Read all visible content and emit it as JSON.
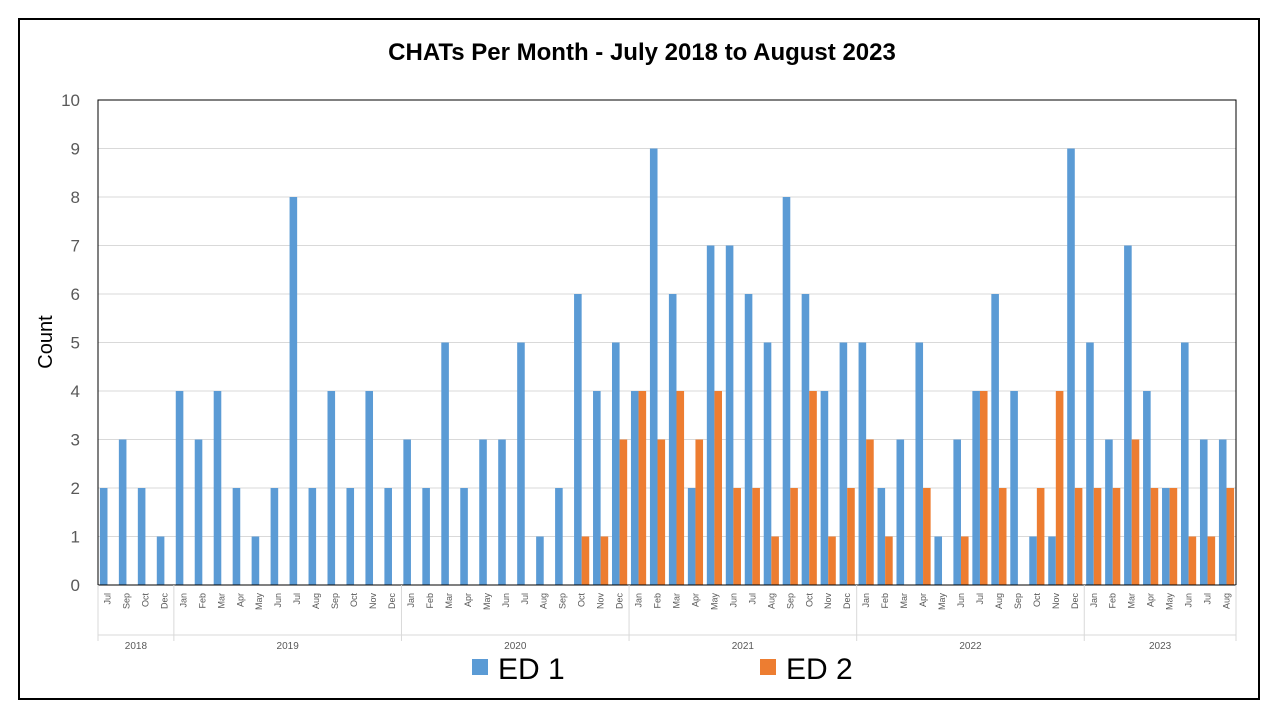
{
  "chart_data": {
    "type": "bar",
    "title": "CHATs Per Month - July 2018 to August 2023",
    "xlabel": "",
    "ylabel": "Count",
    "ylim": [
      0,
      10
    ],
    "yticks": [
      0,
      1,
      2,
      3,
      4,
      5,
      6,
      7,
      8,
      9,
      10
    ],
    "grid": true,
    "legend_position": "bottom",
    "categories": [
      "Jul",
      "Sep",
      "Oct",
      "Dec",
      "Jan",
      "Feb",
      "Mar",
      "Apr",
      "May",
      "Jun",
      "Jul",
      "Aug",
      "Sep",
      "Oct",
      "Nov",
      "Dec",
      "Jan",
      "Feb",
      "Mar",
      "Apr",
      "May",
      "Jun",
      "Jul",
      "Aug",
      "Sep",
      "Oct",
      "Nov",
      "Dec",
      "Jan",
      "Feb",
      "Mar",
      "Apr",
      "May",
      "Jun",
      "Jul",
      "Aug",
      "Sep",
      "Oct",
      "Nov",
      "Dec",
      "Jan",
      "Feb",
      "Mar",
      "Apr",
      "May",
      "Jun",
      "Jul",
      "Aug",
      "Sep",
      "Oct",
      "Nov",
      "Dec",
      "Jan",
      "Feb",
      "Mar",
      "Apr",
      "May",
      "Jun",
      "Jul",
      "Aug"
    ],
    "year_groups": [
      {
        "label": "2018",
        "count": 4
      },
      {
        "label": "2019",
        "count": 12
      },
      {
        "label": "2020",
        "count": 12
      },
      {
        "label": "2021",
        "count": 12
      },
      {
        "label": "2022",
        "count": 12
      },
      {
        "label": "2023",
        "count": 8
      }
    ],
    "series": [
      {
        "name": "ED 1",
        "color": "#5B9BD5",
        "values": [
          2,
          3,
          2,
          1,
          4,
          3,
          4,
          2,
          1,
          2,
          8,
          2,
          4,
          2,
          4,
          2,
          3,
          2,
          5,
          2,
          3,
          3,
          5,
          1,
          2,
          6,
          4,
          5,
          4,
          9,
          6,
          2,
          7,
          7,
          6,
          5,
          8,
          6,
          4,
          5,
          5,
          2,
          3,
          5,
          1,
          3,
          4,
          6,
          4,
          1,
          1,
          9,
          5,
          3,
          7,
          4,
          2,
          5,
          3,
          3
        ]
      },
      {
        "name": "ED 2",
        "color": "#ED7D31",
        "values": [
          0,
          0,
          0,
          0,
          0,
          0,
          0,
          0,
          0,
          0,
          0,
          0,
          0,
          0,
          0,
          0,
          0,
          0,
          0,
          0,
          0,
          0,
          0,
          0,
          0,
          1,
          1,
          3,
          4,
          3,
          4,
          3,
          4,
          2,
          2,
          1,
          2,
          4,
          1,
          2,
          3,
          1,
          0,
          2,
          0,
          1,
          4,
          2,
          0,
          2,
          4,
          2,
          2,
          2,
          3,
          2,
          2,
          1,
          1,
          2
        ]
      }
    ]
  }
}
